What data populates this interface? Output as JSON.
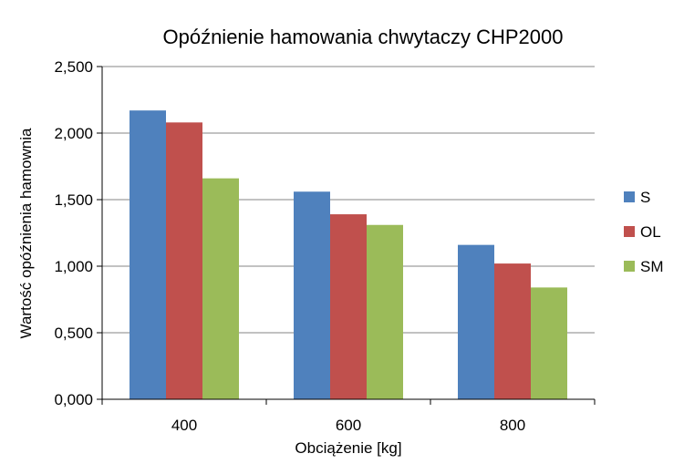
{
  "chart_data": {
    "type": "bar",
    "title": "Opóźnienie hamowania chwytaczy CHP2000",
    "xlabel": "Obciążenie [kg]",
    "ylabel": "Wartość opóźnienia hamownia",
    "categories": [
      "400",
      "600",
      "800"
    ],
    "series": [
      {
        "name": "S",
        "color": "#4F81BD",
        "values": [
          2.17,
          1.56,
          1.16
        ]
      },
      {
        "name": "OL",
        "color": "#C0504D",
        "values": [
          2.08,
          1.39,
          1.02
        ]
      },
      {
        "name": "SM",
        "color": "#9BBB59",
        "values": [
          1.66,
          1.31,
          0.84
        ]
      }
    ],
    "ylim": [
      0,
      2.5
    ],
    "yticks": [
      0,
      0.5,
      1.0,
      1.5,
      2.0,
      2.5
    ],
    "ytick_labels": [
      "0,000",
      "0,500",
      "1,000",
      "1,500",
      "2,000",
      "2,500"
    ],
    "grid": true,
    "legend_position": "right"
  }
}
